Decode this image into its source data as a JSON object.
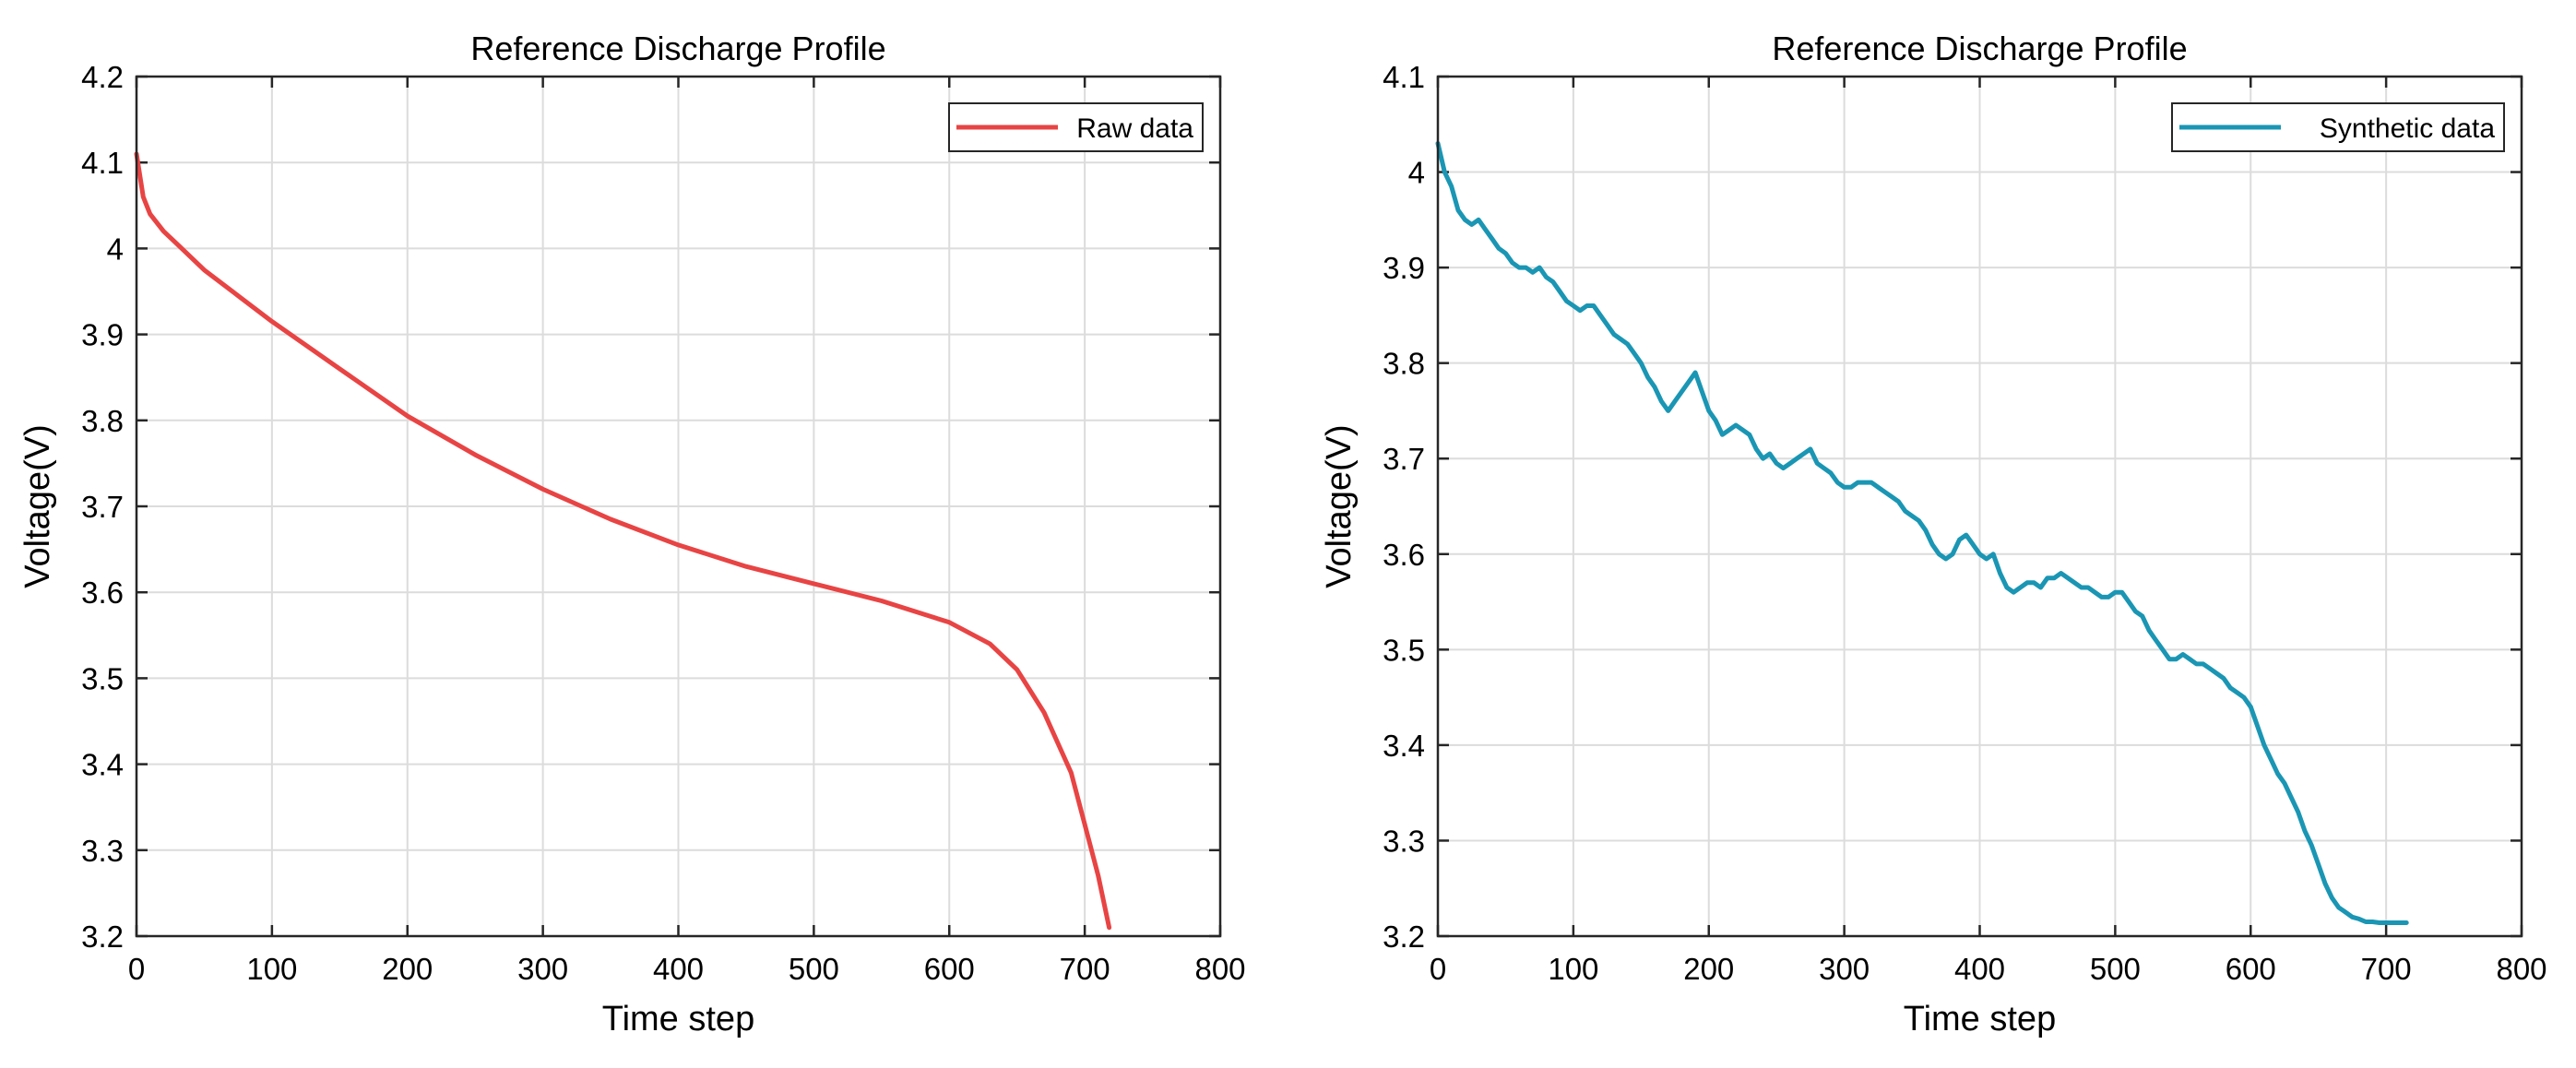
{
  "chart_data": [
    {
      "type": "line",
      "title": "Reference Discharge Profile",
      "xlabel": "Time step",
      "ylabel": "Voltage(V)",
      "xlim": [
        0,
        800
      ],
      "ylim": [
        3.2,
        4.2
      ],
      "xticks": [
        0,
        100,
        200,
        300,
        400,
        500,
        600,
        700,
        800
      ],
      "xtick_labels": [
        "0",
        "100",
        "200",
        "300",
        "400",
        "500",
        "600",
        "700",
        "800"
      ],
      "yticks": [
        3.2,
        3.3,
        3.4,
        3.5,
        3.6,
        3.7,
        3.8,
        3.9,
        4.0,
        4.1,
        4.2
      ],
      "ytick_labels": [
        "3.2",
        "3.3",
        "3.4",
        "3.5",
        "3.6",
        "3.7",
        "3.8",
        "3.9",
        "4",
        "4.1",
        "4.2"
      ],
      "grid": true,
      "legend_position": "top-right",
      "series": [
        {
          "name": "Raw data",
          "color": "#e84444",
          "x": [
            0,
            5,
            10,
            20,
            30,
            50,
            75,
            100,
            150,
            200,
            250,
            300,
            350,
            400,
            450,
            500,
            550,
            600,
            630,
            650,
            670,
            690,
            700,
            710,
            718
          ],
          "y": [
            4.11,
            4.06,
            4.04,
            4.02,
            4.005,
            3.975,
            3.945,
            3.915,
            3.86,
            3.805,
            3.76,
            3.72,
            3.685,
            3.655,
            3.63,
            3.61,
            3.59,
            3.565,
            3.54,
            3.51,
            3.46,
            3.39,
            3.33,
            3.27,
            3.21
          ]
        }
      ]
    },
    {
      "type": "line",
      "title": "Reference Discharge Profile",
      "xlabel": "Time step",
      "ylabel": "Voltage(V)",
      "xlim": [
        0,
        800
      ],
      "ylim": [
        3.2,
        4.1
      ],
      "xticks": [
        0,
        100,
        200,
        300,
        400,
        500,
        600,
        700,
        800
      ],
      "xtick_labels": [
        "0",
        "100",
        "200",
        "300",
        "400",
        "500",
        "600",
        "700",
        "800"
      ],
      "yticks": [
        3.2,
        3.3,
        3.4,
        3.5,
        3.6,
        3.7,
        3.8,
        3.9,
        4.0,
        4.1
      ],
      "ytick_labels": [
        "3.2",
        "3.3",
        "3.4",
        "3.5",
        "3.6",
        "3.7",
        "3.8",
        "3.9",
        "4",
        "4.1"
      ],
      "grid": true,
      "legend_position": "top-right",
      "series": [
        {
          "name": "Synthetic data",
          "color": "#1a96b4",
          "x": [
            0,
            5,
            10,
            15,
            20,
            25,
            30,
            35,
            40,
            45,
            50,
            55,
            60,
            65,
            70,
            75,
            80,
            85,
            90,
            95,
            100,
            105,
            110,
            115,
            120,
            125,
            130,
            135,
            140,
            145,
            150,
            155,
            160,
            165,
            170,
            175,
            180,
            185,
            190,
            195,
            200,
            205,
            210,
            215,
            220,
            225,
            230,
            235,
            240,
            245,
            250,
            255,
            260,
            265,
            270,
            275,
            280,
            285,
            290,
            295,
            300,
            305,
            310,
            315,
            320,
            325,
            330,
            335,
            340,
            345,
            350,
            355,
            360,
            365,
            370,
            375,
            380,
            385,
            390,
            395,
            400,
            405,
            410,
            415,
            420,
            425,
            430,
            435,
            440,
            445,
            450,
            455,
            460,
            465,
            470,
            475,
            480,
            485,
            490,
            495,
            500,
            505,
            510,
            515,
            520,
            525,
            530,
            535,
            540,
            545,
            550,
            555,
            560,
            565,
            570,
            575,
            580,
            585,
            590,
            595,
            600,
            605,
            610,
            615,
            620,
            625,
            630,
            635,
            640,
            645,
            650,
            655,
            660,
            665,
            670,
            675,
            680,
            685,
            690,
            695,
            700,
            705,
            710,
            715
          ],
          "y": [
            4.03,
            4.0,
            3.985,
            3.96,
            3.95,
            3.945,
            3.95,
            3.94,
            3.93,
            3.92,
            3.915,
            3.905,
            3.9,
            3.9,
            3.895,
            3.9,
            3.89,
            3.885,
            3.875,
            3.865,
            3.86,
            3.855,
            3.86,
            3.86,
            3.85,
            3.84,
            3.83,
            3.825,
            3.82,
            3.81,
            3.8,
            3.785,
            3.775,
            3.76,
            3.75,
            3.76,
            3.77,
            3.78,
            3.79,
            3.77,
            3.75,
            3.74,
            3.725,
            3.73,
            3.735,
            3.73,
            3.725,
            3.71,
            3.7,
            3.705,
            3.695,
            3.69,
            3.695,
            3.7,
            3.705,
            3.71,
            3.695,
            3.69,
            3.685,
            3.675,
            3.67,
            3.67,
            3.675,
            3.675,
            3.675,
            3.67,
            3.665,
            3.66,
            3.655,
            3.645,
            3.64,
            3.635,
            3.625,
            3.61,
            3.6,
            3.595,
            3.6,
            3.615,
            3.62,
            3.61,
            3.6,
            3.595,
            3.6,
            3.58,
            3.565,
            3.56,
            3.565,
            3.57,
            3.57,
            3.565,
            3.575,
            3.575,
            3.58,
            3.575,
            3.57,
            3.565,
            3.565,
            3.56,
            3.555,
            3.555,
            3.56,
            3.56,
            3.55,
            3.54,
            3.535,
            3.52,
            3.51,
            3.5,
            3.49,
            3.49,
            3.495,
            3.49,
            3.485,
            3.485,
            3.48,
            3.475,
            3.47,
            3.46,
            3.455,
            3.45,
            3.44,
            3.42,
            3.4,
            3.385,
            3.37,
            3.36,
            3.345,
            3.33,
            3.31,
            3.295,
            3.275,
            3.255,
            3.24,
            3.23,
            3.225,
            3.22,
            3.218,
            3.215,
            3.215,
            3.214,
            3.214,
            3.214,
            3.214,
            3.214
          ]
        }
      ]
    }
  ]
}
